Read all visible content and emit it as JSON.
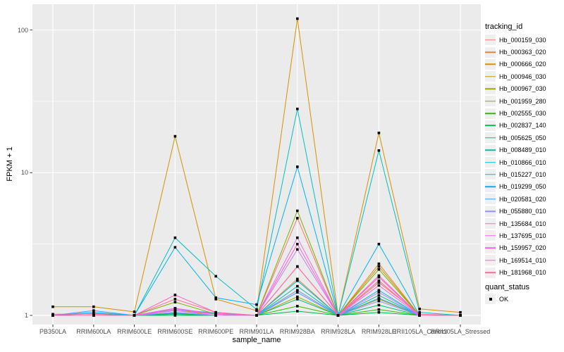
{
  "panel": {
    "bg": "#EBEBEB",
    "grid": "#FFFFFF"
  },
  "axis": {
    "tick_color": "#333333",
    "label_color": "#4D4D4D"
  },
  "chart_data": {
    "type": "line",
    "title": "",
    "xlabel": "sample_name",
    "ylabel": "FPKM + 1",
    "y_scale": "log10",
    "y_ticks": [
      1,
      10,
      100
    ],
    "y_minor": [
      3.1623,
      31.623
    ],
    "ylim": [
      0.86,
      150
    ],
    "grid": "on",
    "marker": "filled-square-black",
    "legend_position": "right",
    "categories": [
      "PB350LA",
      "RRIM600LA",
      "RRIM600LE",
      "RRIM600SE",
      "RRIM600PE",
      "RRIM901LA",
      "RRIM928BA",
      "RRIM928LA",
      "RRIM928LE",
      "RRII105LA_Control",
      "RRII105LA_Stressed"
    ],
    "series": [
      {
        "name": "Hb_000159_030",
        "color": "#F8766D",
        "values": [
          1,
          1,
          1,
          1.05,
          1,
          1,
          4.8,
          1,
          1.75,
          1,
          1
        ]
      },
      {
        "name": "Hb_000363_020",
        "color": "#EA8331",
        "values": [
          1,
          1,
          1,
          1.1,
          1.02,
          1,
          1.8,
          1,
          2.3,
          1,
          1
        ]
      },
      {
        "name": "Hb_000666_020",
        "color": "#D89000",
        "values": [
          1.15,
          1.15,
          1.06,
          18,
          1.3,
          1.08,
          120,
          1,
          19,
          1.11,
          1.05
        ]
      },
      {
        "name": "Hb_000946_030",
        "color": "#C09B00",
        "values": [
          1,
          1,
          1,
          1.08,
          1.02,
          1,
          1.5,
          1,
          2.2,
          1,
          1
        ]
      },
      {
        "name": "Hb_000967_030",
        "color": "#A3A500",
        "values": [
          1,
          1,
          1,
          1.03,
          1,
          1,
          1.35,
          1,
          1.3,
          1,
          1
        ]
      },
      {
        "name": "Hb_001959_280",
        "color": "#7CAE00",
        "values": [
          1,
          1,
          1,
          1.24,
          1.02,
          1,
          5.4,
          1,
          2.1,
          1,
          1
        ]
      },
      {
        "name": "Hb_002555_030",
        "color": "#39B600",
        "values": [
          1,
          1,
          1,
          1.02,
          1,
          1,
          1.16,
          1,
          1.1,
          1,
          1
        ]
      },
      {
        "name": "Hb_002837_140",
        "color": "#00BB4E",
        "values": [
          1,
          1,
          1,
          1,
          1,
          1,
          1.07,
          1,
          1.05,
          1,
          1
        ]
      },
      {
        "name": "Hb_005625_050",
        "color": "#00BF7D",
        "values": [
          1,
          1,
          1,
          1.02,
          1,
          1,
          1.3,
          1,
          1.18,
          1,
          1
        ]
      },
      {
        "name": "Hb_008489_010",
        "color": "#00C1A3",
        "values": [
          1,
          1,
          1,
          1.04,
          1,
          1,
          1.6,
          1,
          1.38,
          1,
          1
        ]
      },
      {
        "name": "Hb_010866_010",
        "color": "#00BFC4",
        "values": [
          1,
          1.03,
          1,
          3.5,
          1.88,
          1.1,
          28,
          1,
          14.3,
          1.05,
          1
        ]
      },
      {
        "name": "Hb_015227_010",
        "color": "#00BAE0",
        "values": [
          1,
          1,
          1,
          1.1,
          1.04,
          1,
          1.75,
          1,
          1.5,
          1,
          1
        ]
      },
      {
        "name": "Hb_019299_050",
        "color": "#00B0F6",
        "values": [
          1,
          1.05,
          1,
          3.0,
          1.33,
          1.19,
          11,
          1,
          3.16,
          1,
          1
        ]
      },
      {
        "name": "Hb_020581_020",
        "color": "#35A2FF",
        "values": [
          1,
          1.08,
          1,
          1.12,
          1.02,
          1,
          1.45,
          1,
          1.32,
          1,
          1
        ]
      },
      {
        "name": "Hb_055880_010",
        "color": "#9590FF",
        "values": [
          1,
          1,
          1,
          1.05,
          1,
          1,
          1.5,
          1,
          1.26,
          1,
          1
        ]
      },
      {
        "name": "Hb_135684_010",
        "color": "#C77CFF",
        "values": [
          1,
          1,
          1,
          1.08,
          1,
          1,
          2.9,
          1,
          1.45,
          1,
          1
        ]
      },
      {
        "name": "Hb_137695_010",
        "color": "#E76BF3",
        "values": [
          1,
          1,
          1,
          1.1,
          1.02,
          1,
          3.5,
          1,
          1.62,
          1,
          1
        ]
      },
      {
        "name": "Hb_159957_020",
        "color": "#FA62DB",
        "values": [
          1,
          1,
          1,
          1.12,
          1.02,
          1,
          2.2,
          1,
          1.85,
          1,
          1
        ]
      },
      {
        "name": "Hb_169514_010",
        "color": "#FF62BC",
        "values": [
          1,
          1,
          1,
          1.39,
          1.05,
          1,
          3.16,
          1,
          1.9,
          1,
          1
        ]
      },
      {
        "name": "Hb_181968_010",
        "color": "#FF6A98",
        "values": [
          1.02,
          1.02,
          1,
          1.3,
          1.05,
          1,
          2.2,
          1,
          1.7,
          1.02,
          1
        ]
      }
    ],
    "legend": {
      "title": "tracking_id"
    },
    "legend2": {
      "title": "quant_status",
      "items": [
        {
          "label": "OK",
          "shape": "filled-square"
        }
      ]
    }
  }
}
